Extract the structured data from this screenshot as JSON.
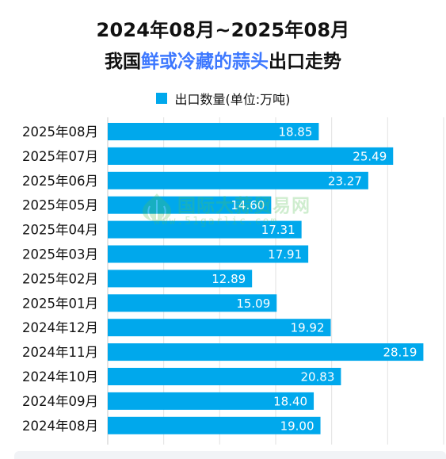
{
  "header": {
    "title_line1": "2024年08月~2025年08月",
    "title_line2_prefix": "我国",
    "title_line2_highlight": "鲜或冷藏的蒜头",
    "title_line2_suffix": "出口走势",
    "highlight_color": "#3d78ff"
  },
  "watermark": {
    "text": "国际大蒜贸易网",
    "url": "www.51garlic.com",
    "logo_icon": "garlic-logo-icon"
  },
  "chart_data": {
    "type": "bar",
    "orientation": "horizontal",
    "categories": [
      "2025年08月",
      "2025年07月",
      "2025年06月",
      "2025年05月",
      "2025年04月",
      "2025年03月",
      "2025年02月",
      "2025年01月",
      "2024年12月",
      "2024年11月",
      "2024年10月",
      "2024年09月",
      "2024年08月"
    ],
    "series": [
      {
        "name": "出口数量(单位:万吨)",
        "values": [
          18.85,
          25.49,
          23.27,
          14.6,
          17.31,
          17.91,
          12.89,
          15.09,
          19.92,
          28.19,
          20.83,
          18.4,
          19.0
        ],
        "labels": [
          "18.85",
          "25.49",
          "23.27",
          "14.60",
          "17.31",
          "17.91",
          "12.89",
          "15.09",
          "19.92",
          "28.19",
          "20.83",
          "18.40",
          "19.00"
        ],
        "color": "#00a8ec"
      }
    ],
    "xlim": [
      0,
      30
    ],
    "grid": true,
    "legend_position": "top"
  }
}
